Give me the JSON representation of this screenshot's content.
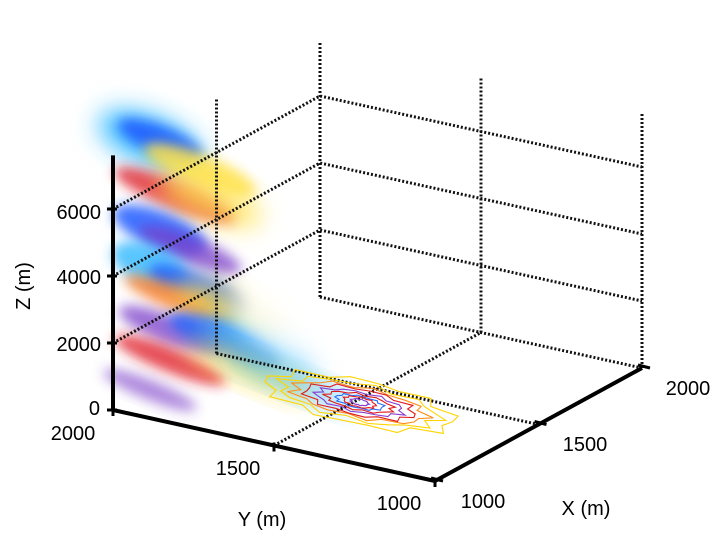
{
  "chart_data": {
    "type": "3d-volume",
    "grid": true,
    "axes": {
      "x": {
        "label": "X (m)",
        "range": [
          1000,
          2000
        ],
        "ticks": [
          1000,
          1500,
          2000
        ],
        "tick_labels": [
          "1000",
          "1500",
          "2000"
        ]
      },
      "y": {
        "label": "Y (m)",
        "range": [
          1000,
          2000
        ],
        "ticks": [
          1000,
          1500,
          2000
        ],
        "tick_labels": [
          "1000",
          "1500",
          "2000"
        ]
      },
      "z": {
        "label": "Z (m)",
        "range": [
          0,
          7500
        ],
        "ticks": [
          0,
          2000,
          4000,
          6000
        ],
        "tick_labels": [
          "0",
          "2000",
          "4000",
          "6000"
        ]
      }
    },
    "layers": [
      {
        "name": "volume-slice",
        "description": "semi-transparent volumetric slice on the Y-Z side wall",
        "colormap": [
          "#1f5cff",
          "#2fb8ff",
          "#ffffff",
          "#ffe24a",
          "#ff7a1f",
          "#e0202a",
          "#7a3cc8"
        ]
      },
      {
        "name": "ground-contours",
        "description": "contour lines on the Z=0 plane",
        "colors": [
          "#ffd400",
          "#ff8c1a",
          "#e01a1a",
          "#8a3ccf",
          "#2b6cff"
        ]
      }
    ]
  }
}
